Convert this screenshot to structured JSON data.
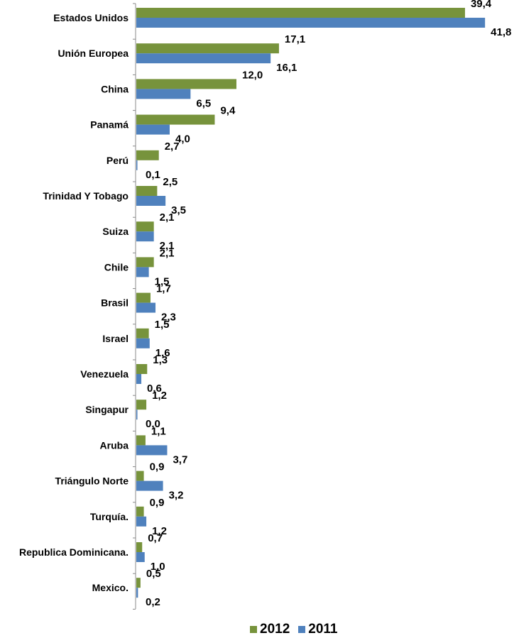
{
  "chart_data": {
    "type": "bar",
    "orientation": "horizontal",
    "categories": [
      "Estados Unidos",
      "Unión Europea",
      "China",
      "Panamá",
      "Perú",
      "Trinidad Y Tobago",
      "Suiza",
      "Chile",
      "Brasil",
      "Israel",
      "Venezuela",
      "Singapur",
      "Aruba",
      "Triángulo Norte",
      "Turquía.",
      "Republica Dominicana.",
      "Mexico."
    ],
    "series": [
      {
        "name": "2012",
        "color": "#77933C",
        "values": [
          39.4,
          17.1,
          12.0,
          9.4,
          2.7,
          2.5,
          2.1,
          2.1,
          1.7,
          1.5,
          1.3,
          1.2,
          1.1,
          0.9,
          0.9,
          0.7,
          0.5
        ],
        "labels": [
          "39,4",
          "17,1",
          "12,0",
          "9,4",
          "2,7",
          "2,5",
          "2,1",
          "2,1",
          "1,7",
          "1,5",
          "1,3",
          "1,2",
          "1,1",
          "0,9",
          "0,9",
          "0,7",
          "0,5"
        ]
      },
      {
        "name": "2011",
        "color": "#4F81BD",
        "values": [
          41.8,
          16.1,
          6.5,
          4.0,
          0.1,
          3.5,
          2.1,
          1.5,
          2.3,
          1.6,
          0.6,
          0.0,
          3.7,
          3.2,
          1.2,
          1.0,
          0.2
        ],
        "labels": [
          "41,8",
          "16,1",
          "6,5",
          "4,0",
          "0,1",
          "3,5",
          "2,1",
          "1,5",
          "2,3",
          "1,6",
          "0,6",
          "0,0",
          "3,7",
          "3,2",
          "1,2",
          "1,0",
          "0,2"
        ]
      }
    ],
    "legend_position": "bottom",
    "grid": false
  }
}
